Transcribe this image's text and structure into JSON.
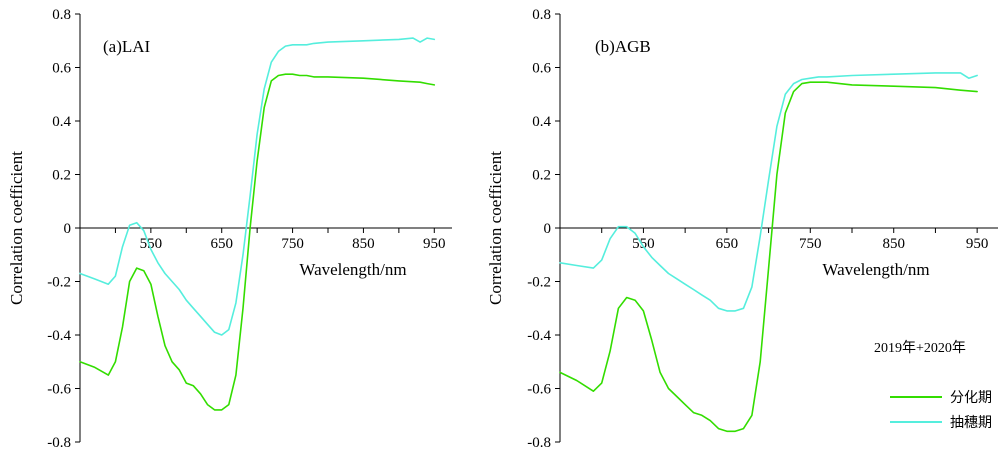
{
  "colors": {
    "series1": "#33dd00",
    "series2": "#55eedd",
    "axis": "#000000"
  },
  "legend": {
    "title": "2019年+2020年",
    "entries": [
      "分化期",
      "抽穗期"
    ]
  },
  "chart_data": [
    {
      "type": "line",
      "title": "(a)LAI",
      "xlabel": "Wavelength/nm",
      "ylabel": "Correlation coefficient",
      "xlim": [
        450,
        975
      ],
      "ylim": [
        -0.8,
        0.8
      ],
      "xticks": [
        "550",
        "650",
        "750",
        "850",
        "950"
      ],
      "yticks": [
        "0.8",
        "0.6",
        "0.4",
        "0.2",
        "0",
        "-0.2",
        "-0.4",
        "-0.6",
        "-0.8"
      ],
      "grid": false,
      "series": [
        {
          "name": "分化期",
          "x": [
            450,
            470,
            490,
            500,
            510,
            520,
            530,
            540,
            550,
            560,
            570,
            580,
            590,
            600,
            610,
            620,
            630,
            640,
            650,
            660,
            670,
            680,
            690,
            700,
            710,
            720,
            730,
            740,
            750,
            760,
            770,
            780,
            800,
            850,
            900,
            930,
            940,
            950
          ],
          "y": [
            -0.5,
            -0.52,
            -0.55,
            -0.5,
            -0.37,
            -0.2,
            -0.15,
            -0.16,
            -0.21,
            -0.33,
            -0.44,
            -0.5,
            -0.53,
            -0.58,
            -0.59,
            -0.62,
            -0.66,
            -0.68,
            -0.68,
            -0.66,
            -0.55,
            -0.3,
            0.0,
            0.25,
            0.45,
            0.55,
            0.57,
            0.575,
            0.575,
            0.57,
            0.57,
            0.565,
            0.565,
            0.56,
            0.55,
            0.545,
            0.54,
            0.535
          ]
        },
        {
          "name": "抽穗期",
          "x": [
            450,
            470,
            490,
            500,
            510,
            520,
            530,
            540,
            550,
            560,
            570,
            580,
            590,
            600,
            610,
            620,
            630,
            640,
            650,
            660,
            670,
            680,
            690,
            700,
            710,
            720,
            730,
            740,
            750,
            760,
            770,
            780,
            800,
            850,
            900,
            920,
            930,
            940,
            950
          ],
          "y": [
            -0.17,
            -0.19,
            -0.21,
            -0.18,
            -0.07,
            0.01,
            0.02,
            -0.01,
            -0.08,
            -0.13,
            -0.17,
            -0.2,
            -0.23,
            -0.27,
            -0.3,
            -0.33,
            -0.36,
            -0.39,
            -0.4,
            -0.38,
            -0.28,
            -0.1,
            0.12,
            0.35,
            0.52,
            0.62,
            0.66,
            0.68,
            0.685,
            0.685,
            0.685,
            0.69,
            0.695,
            0.7,
            0.705,
            0.71,
            0.695,
            0.71,
            0.705
          ]
        }
      ]
    },
    {
      "type": "line",
      "title": "(b)AGB",
      "xlabel": "Wavelength/nm",
      "ylabel": "Correlation coefficient",
      "xlim": [
        450,
        975
      ],
      "ylim": [
        -0.8,
        0.8
      ],
      "xticks": [
        "550",
        "650",
        "750",
        "850",
        "950"
      ],
      "yticks": [
        "0.8",
        "0.6",
        "0.4",
        "0.2",
        "0",
        "-0.2",
        "-0.4",
        "-0.6",
        "-0.8"
      ],
      "grid": false,
      "series": [
        {
          "name": "分化期",
          "x": [
            450,
            470,
            490,
            500,
            510,
            520,
            530,
            540,
            550,
            560,
            570,
            580,
            590,
            600,
            610,
            620,
            630,
            640,
            650,
            660,
            670,
            680,
            690,
            700,
            710,
            720,
            730,
            740,
            750,
            760,
            770,
            800,
            850,
            900,
            930,
            950
          ],
          "y": [
            -0.54,
            -0.57,
            -0.61,
            -0.58,
            -0.46,
            -0.3,
            -0.26,
            -0.27,
            -0.31,
            -0.42,
            -0.54,
            -0.6,
            -0.63,
            -0.66,
            -0.69,
            -0.7,
            -0.72,
            -0.75,
            -0.76,
            -0.76,
            -0.75,
            -0.7,
            -0.5,
            -0.15,
            0.2,
            0.43,
            0.51,
            0.54,
            0.545,
            0.545,
            0.545,
            0.535,
            0.53,
            0.525,
            0.515,
            0.51
          ]
        },
        {
          "name": "抽穗期",
          "x": [
            450,
            470,
            490,
            500,
            510,
            520,
            530,
            540,
            550,
            560,
            570,
            580,
            590,
            600,
            610,
            620,
            630,
            640,
            650,
            660,
            670,
            680,
            690,
            700,
            710,
            720,
            730,
            740,
            750,
            760,
            770,
            800,
            850,
            900,
            920,
            930,
            940,
            950
          ],
          "y": [
            -0.13,
            -0.14,
            -0.15,
            -0.12,
            -0.04,
            0.005,
            0.005,
            -0.02,
            -0.07,
            -0.11,
            -0.14,
            -0.17,
            -0.19,
            -0.21,
            -0.23,
            -0.25,
            -0.27,
            -0.3,
            -0.31,
            -0.31,
            -0.3,
            -0.22,
            -0.03,
            0.18,
            0.38,
            0.5,
            0.54,
            0.555,
            0.56,
            0.565,
            0.565,
            0.57,
            0.575,
            0.58,
            0.58,
            0.58,
            0.56,
            0.57
          ]
        }
      ]
    }
  ]
}
